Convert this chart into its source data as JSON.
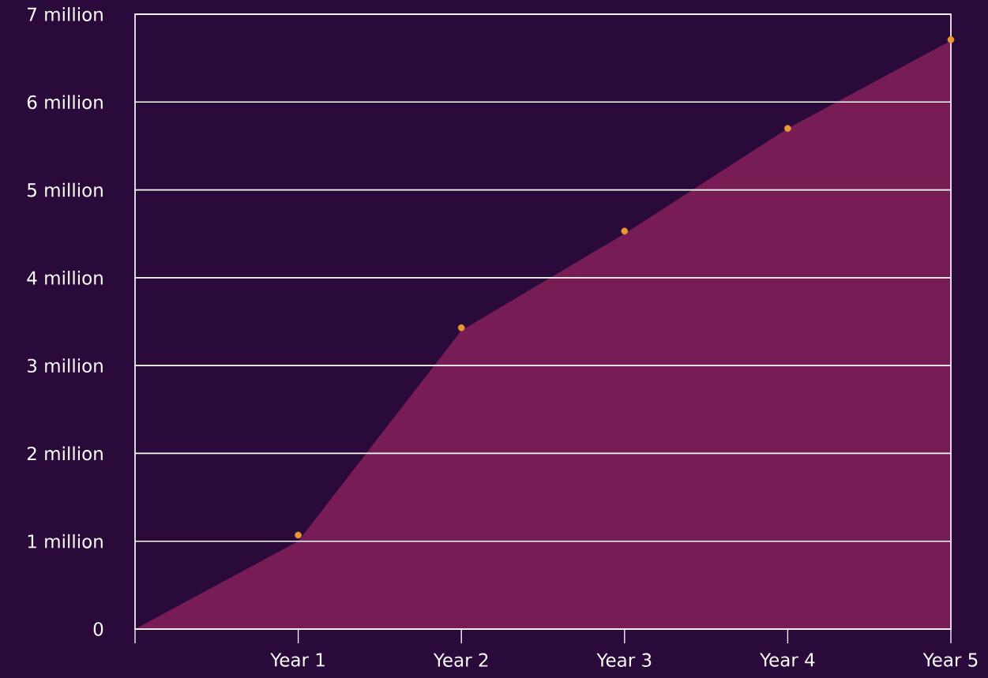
{
  "chart_data": {
    "type": "area",
    "categories": [
      null,
      "Year 1",
      "Year 2",
      "Year 3",
      "Year 4",
      "Year 5"
    ],
    "series": [
      {
        "color": "#781c55",
        "values": [
          0,
          1.0,
          3.4,
          4.5,
          5.7,
          6.7
        ]
      },
      {
        "type": "scatter",
        "marker": "circle",
        "color": "#e89a30",
        "values": [
          null,
          1.07,
          3.43,
          4.53,
          5.7,
          6.71
        ]
      }
    ],
    "ylim": [
      0,
      7
    ],
    "yticks": [
      0,
      {
        "value": 1,
        "label": "1 million"
      },
      {
        "value": 2,
        "label": "2 million"
      },
      {
        "value": 3,
        "label": "3 million"
      },
      {
        "value": 4,
        "label": "4 million"
      },
      {
        "value": 5,
        "label": "5 million"
      },
      {
        "value": 6,
        "label": "6 million"
      },
      {
        "value": 7,
        "label": "7 million"
      }
    ],
    "grid": "y"
  }
}
